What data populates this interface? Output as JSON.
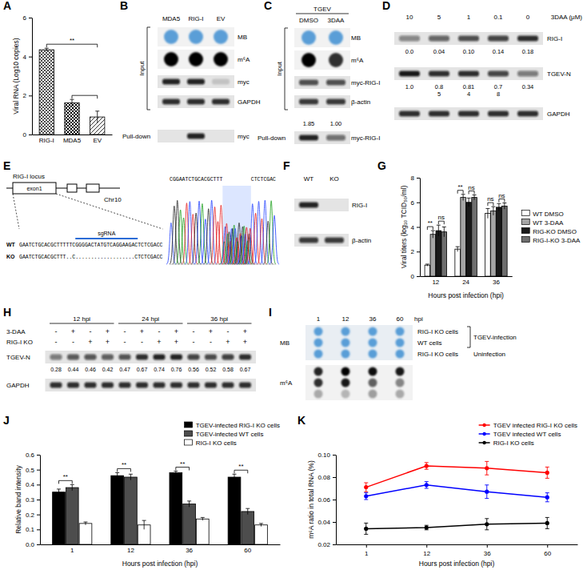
{
  "chart_data": [
    {
      "panel": "A",
      "type": "bar",
      "y_label": "Viral RNA (Log10 copies)",
      "categories": [
        "RIG-I",
        "MDA5",
        "EV"
      ],
      "values": [
        4.35,
        1.62,
        0.9
      ],
      "errors": [
        0.08,
        0.18,
        0.3
      ],
      "color": "#000000",
      "ylim": [
        0,
        6
      ],
      "yticks": [
        0,
        2,
        4,
        6
      ],
      "annotations": [
        {
          "from": "RIG-I",
          "to": "EV",
          "text": "**"
        },
        {
          "from": "MDA5",
          "to": "EV"
        }
      ]
    },
    {
      "panel": "G",
      "type": "bar",
      "x_label": "Hours post infection (hpi)",
      "y_label": "Viral titers (log₁₀ TCID₅₀/ml)",
      "categories": [
        12,
        24,
        36
      ],
      "series": [
        {
          "name": "WT DMSO",
          "color": "#ffffff",
          "values": [
            0.9,
            2.2,
            5.1
          ],
          "errors": [
            0.08,
            0.2,
            0.4
          ]
        },
        {
          "name": "WT 3-DAA",
          "color": "#a6a6a6",
          "values": [
            3.4,
            6.4,
            5.3
          ],
          "errors": [
            0.3,
            0.25,
            0.35
          ]
        },
        {
          "name": "RIG-KO DMSO",
          "color": "#1a1a1a",
          "values": [
            3.7,
            6.0,
            5.6
          ],
          "errors": [
            0.45,
            0.35,
            0.3
          ]
        },
        {
          "name": "RIG-I-KO 3-DAA",
          "color": "#6e6e6e",
          "values": [
            3.6,
            6.4,
            5.7
          ],
          "errors": [
            0.4,
            0.2,
            0.25
          ]
        }
      ],
      "ylim": [
        0,
        8
      ],
      "yticks": [
        0,
        2,
        4,
        6,
        8
      ],
      "legend": "right",
      "annotations": [
        {
          "category": 12,
          "from": "WT DMSO",
          "to": "WT 3-DAA",
          "text": "**"
        },
        {
          "category": 12,
          "from": "RIG-KO DMSO",
          "to": "RIG-I-KO 3-DAA",
          "text": "ns"
        },
        {
          "category": 24,
          "from": "WT DMSO",
          "to": "WT 3-DAA",
          "text": "**"
        },
        {
          "category": 24,
          "from": "RIG-KO DMSO",
          "to": "RIG-I-KO 3-DAA",
          "text": "ns"
        },
        {
          "category": 36,
          "from": "WT DMSO",
          "to": "WT 3-DAA",
          "text": "ns"
        },
        {
          "category": 36,
          "from": "RIG-KO DMSO",
          "to": "RIG-I-KO 3-DAA",
          "text": "ns"
        }
      ]
    },
    {
      "panel": "J",
      "type": "bar",
      "x_label": "Hours post infection (hpi)",
      "y_label": "Relative band intensity",
      "categories": [
        1,
        12,
        36,
        60
      ],
      "series": [
        {
          "name": "TGEV-infected RIG-I KO cells",
          "color": "#000000",
          "values": [
            0.35,
            0.46,
            0.48,
            0.45
          ],
          "errors": [
            0.02,
            0.02,
            0.01,
            0.02
          ]
        },
        {
          "name": "TGEV-infected WT cells",
          "color": "#4d4d4d",
          "values": [
            0.38,
            0.45,
            0.27,
            0.22
          ],
          "errors": [
            0.02,
            0.02,
            0.02,
            0.02
          ]
        },
        {
          "name": "RIG-I KO cells",
          "color": "#ffffff",
          "values": [
            0.14,
            0.13,
            0.17,
            0.13
          ],
          "errors": [
            0.01,
            0.03,
            0.01,
            0.01
          ]
        }
      ],
      "ylim": [
        0,
        0.6
      ],
      "yticks": [
        {
          "value": 0,
          "label": "0.0"
        },
        0.1,
        0.2,
        0.3,
        0.4,
        0.5,
        0.6
      ],
      "legend": "top right",
      "annotations": [
        {
          "category": 1,
          "from": "TGEV-infected RIG-I KO cells",
          "to": "TGEV-infected WT cells",
          "text": "**"
        },
        {
          "category": 12,
          "from": "TGEV-infected RIG-I KO cells",
          "to": "TGEV-infected WT cells",
          "text": "**"
        },
        {
          "category": 36,
          "from": "TGEV-infected RIG-I KO cells",
          "to": "TGEV-infected WT cells",
          "text": "**"
        },
        {
          "category": 60,
          "from": "TGEV-infected RIG-I KO cells",
          "to": "TGEV-infected WT cells",
          "text": "**"
        }
      ]
    },
    {
      "panel": "K",
      "type": "line",
      "x_label": "Hours post infection (hpi)",
      "y_label": "m⁶A ratio in total RNA (%)",
      "categories": [
        1,
        12,
        36,
        60
      ],
      "series": [
        {
          "name": "TGEV infected RIG-I KO cells",
          "color": "#ff0000",
          "values": [
            0.071,
            0.09,
            0.088,
            0.084
          ],
          "errors": [
            0.004,
            0.003,
            0.006,
            0.005
          ]
        },
        {
          "name": "TGEV infected WT cells",
          "color": "#0000ff",
          "values": [
            0.063,
            0.073,
            0.067,
            0.062
          ],
          "errors": [
            0.003,
            0.003,
            0.006,
            0.004
          ]
        },
        {
          "name": "RIG-I KO cells",
          "color": "#000000",
          "values": [
            0.034,
            0.035,
            0.038,
            0.039
          ],
          "errors": [
            0.005,
            0.002,
            0.005,
            0.005
          ]
        }
      ],
      "ylim": [
        0.02,
        0.1
      ],
      "yticks": [
        0.02,
        0.04,
        0.06,
        0.08,
        {
          "value": 0.1,
          "label": "0.10"
        }
      ],
      "marker": "circle",
      "legend": "top right"
    }
  ],
  "blots": [
    {
      "panel": "B",
      "columns": [
        "MDA5",
        "RIG-I",
        "EV"
      ],
      "groups": [
        {
          "label": "Input",
          "rows": [
            {
              "label": "MB",
              "kind": "dot",
              "color": "#3f8fd2",
              "signal": [
                0.85,
                0.85,
                0.85
              ]
            },
            {
              "label": "m⁶A",
              "kind": "dot",
              "color": "#000000",
              "signal": [
                1,
                1,
                1
              ]
            },
            {
              "label": "myc",
              "kind": "band",
              "color": "#111111",
              "signal": [
                0.9,
                0.9,
                0.15
              ]
            },
            {
              "label": "GAPDH",
              "kind": "band",
              "color": "#111111",
              "signal": [
                0.85,
                0.85,
                0.85
              ]
            }
          ]
        },
        {
          "label": "Pull-down",
          "rows": [
            {
              "label": "myc",
              "kind": "band",
              "color": "#111111",
              "signal": [
                0,
                0.9,
                0
              ]
            }
          ]
        }
      ]
    },
    {
      "panel": "C",
      "header": "TGEV",
      "columns": [
        "DMSO",
        "3DAA"
      ],
      "groups": [
        {
          "label": "Input",
          "rows": [
            {
              "label": "MB",
              "kind": "dot",
              "color": "#3f8fd2",
              "signal": [
                0.85,
                0.85
              ]
            },
            {
              "label": "m⁶A",
              "kind": "dot",
              "color": "#000000",
              "signal": [
                1,
                0.8
              ]
            },
            {
              "label": "myc-RIG-I",
              "kind": "band",
              "color": "#111111",
              "signal": [
                0.7,
                0.7
              ]
            },
            {
              "label": "β-actin",
              "kind": "band",
              "color": "#111111",
              "signal": [
                0.8,
                0.8
              ]
            }
          ]
        },
        {
          "label": "Pull-down",
          "rows": [
            {
              "label": "myc-RIG-I",
              "kind": "band",
              "color": "#111111",
              "signal": [
                0.9,
                0.55
              ],
              "quant": [
                "1.85",
                "1.00"
              ]
            }
          ]
        }
      ]
    },
    {
      "panel": "D",
      "header": "3DAA (μM)",
      "columns": [
        "10",
        "5",
        "1",
        "0.1",
        "0"
      ],
      "groups": [
        {
          "rows": [
            {
              "label": "RIG-I",
              "kind": "band",
              "color": "#111111",
              "signal": [
                0.45,
                0.6,
                0.7,
                0.75,
                0.85
              ],
              "quant": [
                "0.0",
                "0.04",
                "0.10",
                "0.14",
                "0.18"
              ]
            },
            {
              "label": "TGEV-N",
              "kind": "band",
              "color": "#111111",
              "signal": [
                0.95,
                0.85,
                0.85,
                0.75,
                0.5
              ],
              "quant": [
                "1.0",
                "0.8",
                "0.81",
                "0.7",
                "0.34"
              ],
              "quant_2": [
                null,
                "5",
                "4",
                "8",
                null
              ]
            },
            {
              "label": "GAPDH",
              "kind": "band",
              "color": "#111111",
              "signal": [
                0.85,
                0.85,
                0.85,
                0.85,
                0.85
              ]
            }
          ]
        }
      ]
    },
    {
      "panel": "E",
      "locus": "RIG-I locus",
      "exon": "exon1",
      "chromosome": "Chr10",
      "sgrna": "sgRNA",
      "sequences": [
        {
          "label": "WT",
          "text": "GAATCTGCACGCTTTTTCGGGGACTATGTCAGGAAGACTCTCGACC"
        },
        {
          "label": "KO",
          "text": "GAATCTGCACGCTTT..C...................CTCTCGACC"
        }
      ],
      "trace_left": "CGGAATCTGCACGCTTT",
      "trace_right": "CTCTCGAC"
    },
    {
      "panel": "F",
      "columns": [
        "WT",
        "KO"
      ],
      "groups": [
        {
          "rows": [
            {
              "label": "RIG-I",
              "kind": "band",
              "color": "#111111",
              "signal": [
                0.9,
                0
              ]
            },
            {
              "label": "β-actin",
              "kind": "band",
              "color": "#111111",
              "signal": [
                0.8,
                0.8
              ]
            }
          ]
        }
      ]
    },
    {
      "panel": "H",
      "timepoints": [
        "12 hpi",
        "24 hpi",
        "36 hpi"
      ],
      "conditions": [
        {
          "label": "3-DAA",
          "marks": [
            "-",
            "+",
            "-",
            "+",
            "-",
            "+",
            "-",
            "+",
            "-",
            "+",
            "-",
            "+"
          ]
        },
        {
          "label": "RIG-I KO",
          "marks": [
            "-",
            "-",
            "+",
            "+",
            "-",
            "-",
            "+",
            "+",
            "-",
            "-",
            "+",
            "+"
          ]
        }
      ],
      "rows": [
        {
          "label": "TGEV-N",
          "kind": "band",
          "color": "#111111",
          "signal": [
            0.5,
            0.65,
            0.67,
            0.63,
            0.68,
            0.85,
            0.9,
            0.9,
            0.75,
            0.72,
            0.77,
            0.85
          ],
          "quant": [
            "0.28",
            "0.44",
            "0.46",
            "0.42",
            "0.47",
            "0.67",
            "0.74",
            "0.76",
            "0.56",
            "0.52",
            "0.58",
            "0.67"
          ]
        },
        {
          "label": "GAPDH",
          "kind": "band",
          "color": "#111111",
          "signal": [
            0.85,
            0.85,
            0.85,
            0.85,
            0.85,
            0.85,
            0.85,
            0.85,
            0.85,
            0.85,
            0.85,
            0.85
          ]
        }
      ]
    },
    {
      "panel": "I",
      "x_title": "hpi",
      "columns": [
        "1",
        "12",
        "36",
        "60"
      ],
      "blots": [
        {
          "label": "MB",
          "kind": "dot",
          "color": "#3f8fd2",
          "signal": [
            [
              0.85,
              0.85,
              0.85,
              0.85
            ],
            [
              0.85,
              0.85,
              0.85,
              0.85
            ],
            [
              0.85,
              0.85,
              0.85,
              0.85
            ]
          ]
        },
        {
          "label": "m⁶A",
          "kind": "dot",
          "color": "#000000",
          "signal": [
            [
              0.85,
              1,
              0.95,
              0.9
            ],
            [
              0.8,
              0.9,
              0.6,
              0.45
            ],
            [
              0.3,
              0.25,
              0.35,
              0.3
            ]
          ]
        }
      ],
      "groups": [
        {
          "label": "TGEV-infection",
          "rows": [
            "RIG-I KO cells",
            "WT cells"
          ]
        },
        {
          "label": "Uninfection",
          "rows": [
            "RIG-I KO cells"
          ]
        }
      ]
    }
  ]
}
